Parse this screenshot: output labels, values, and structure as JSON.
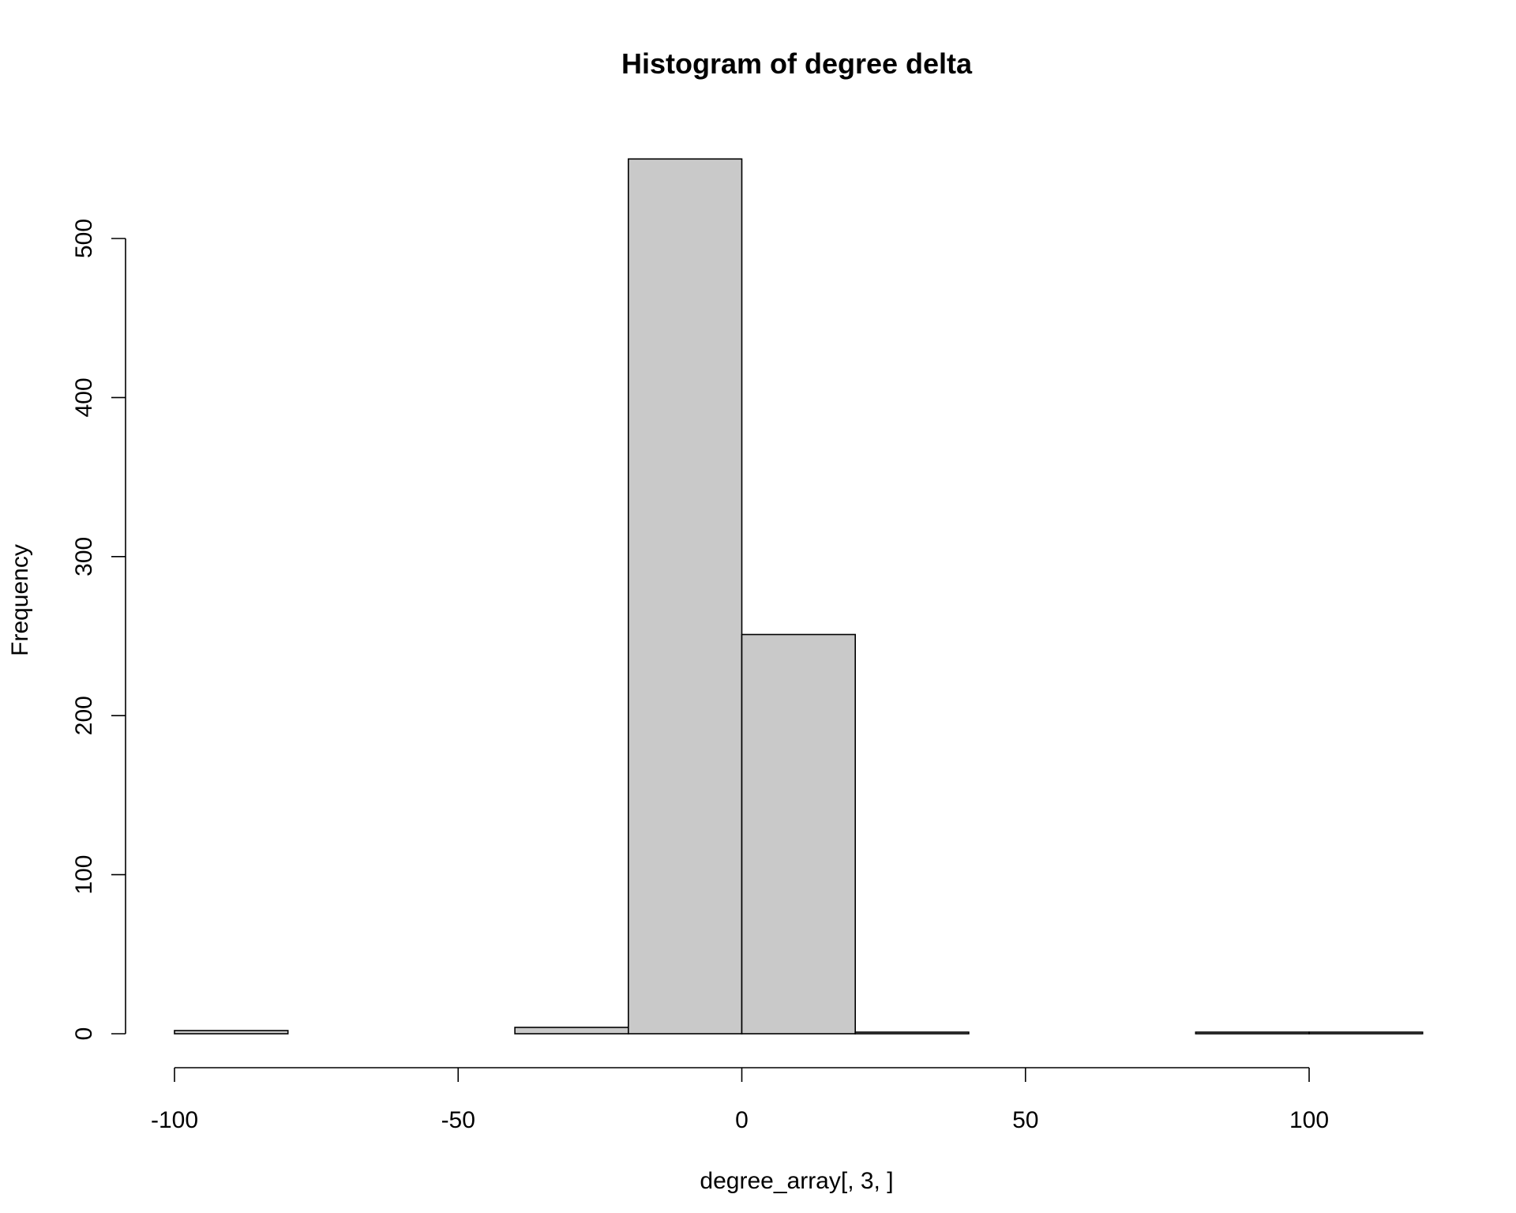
{
  "chart_data": {
    "type": "bar",
    "title": "Histogram of degree delta",
    "xlabel": "degree_array[, 3, ]",
    "ylabel": "Frequency",
    "bins": [
      {
        "start": -100,
        "end": -80,
        "count": 2
      },
      {
        "start": -80,
        "end": -60,
        "count": 0
      },
      {
        "start": -60,
        "end": -40,
        "count": 0
      },
      {
        "start": -40,
        "end": -20,
        "count": 4
      },
      {
        "start": -20,
        "end": 0,
        "count": 550
      },
      {
        "start": 0,
        "end": 20,
        "count": 251
      },
      {
        "start": 20,
        "end": 40,
        "count": 1
      },
      {
        "start": 40,
        "end": 60,
        "count": 0
      },
      {
        "start": 60,
        "end": 80,
        "count": 0
      },
      {
        "start": 80,
        "end": 100,
        "count": 1
      },
      {
        "start": 100,
        "end": 120,
        "count": 1
      }
    ],
    "xlim": [
      -100,
      120
    ],
    "ylim": [
      0,
      550
    ],
    "xticks": [
      "-100",
      "-50",
      "0",
      "50",
      "100"
    ],
    "yticks": [
      "0",
      "100",
      "200",
      "300",
      "400",
      "500"
    ],
    "grid": false,
    "colors": {
      "bar_fill": "#c9c9c9",
      "bar_stroke": "#000000"
    }
  }
}
